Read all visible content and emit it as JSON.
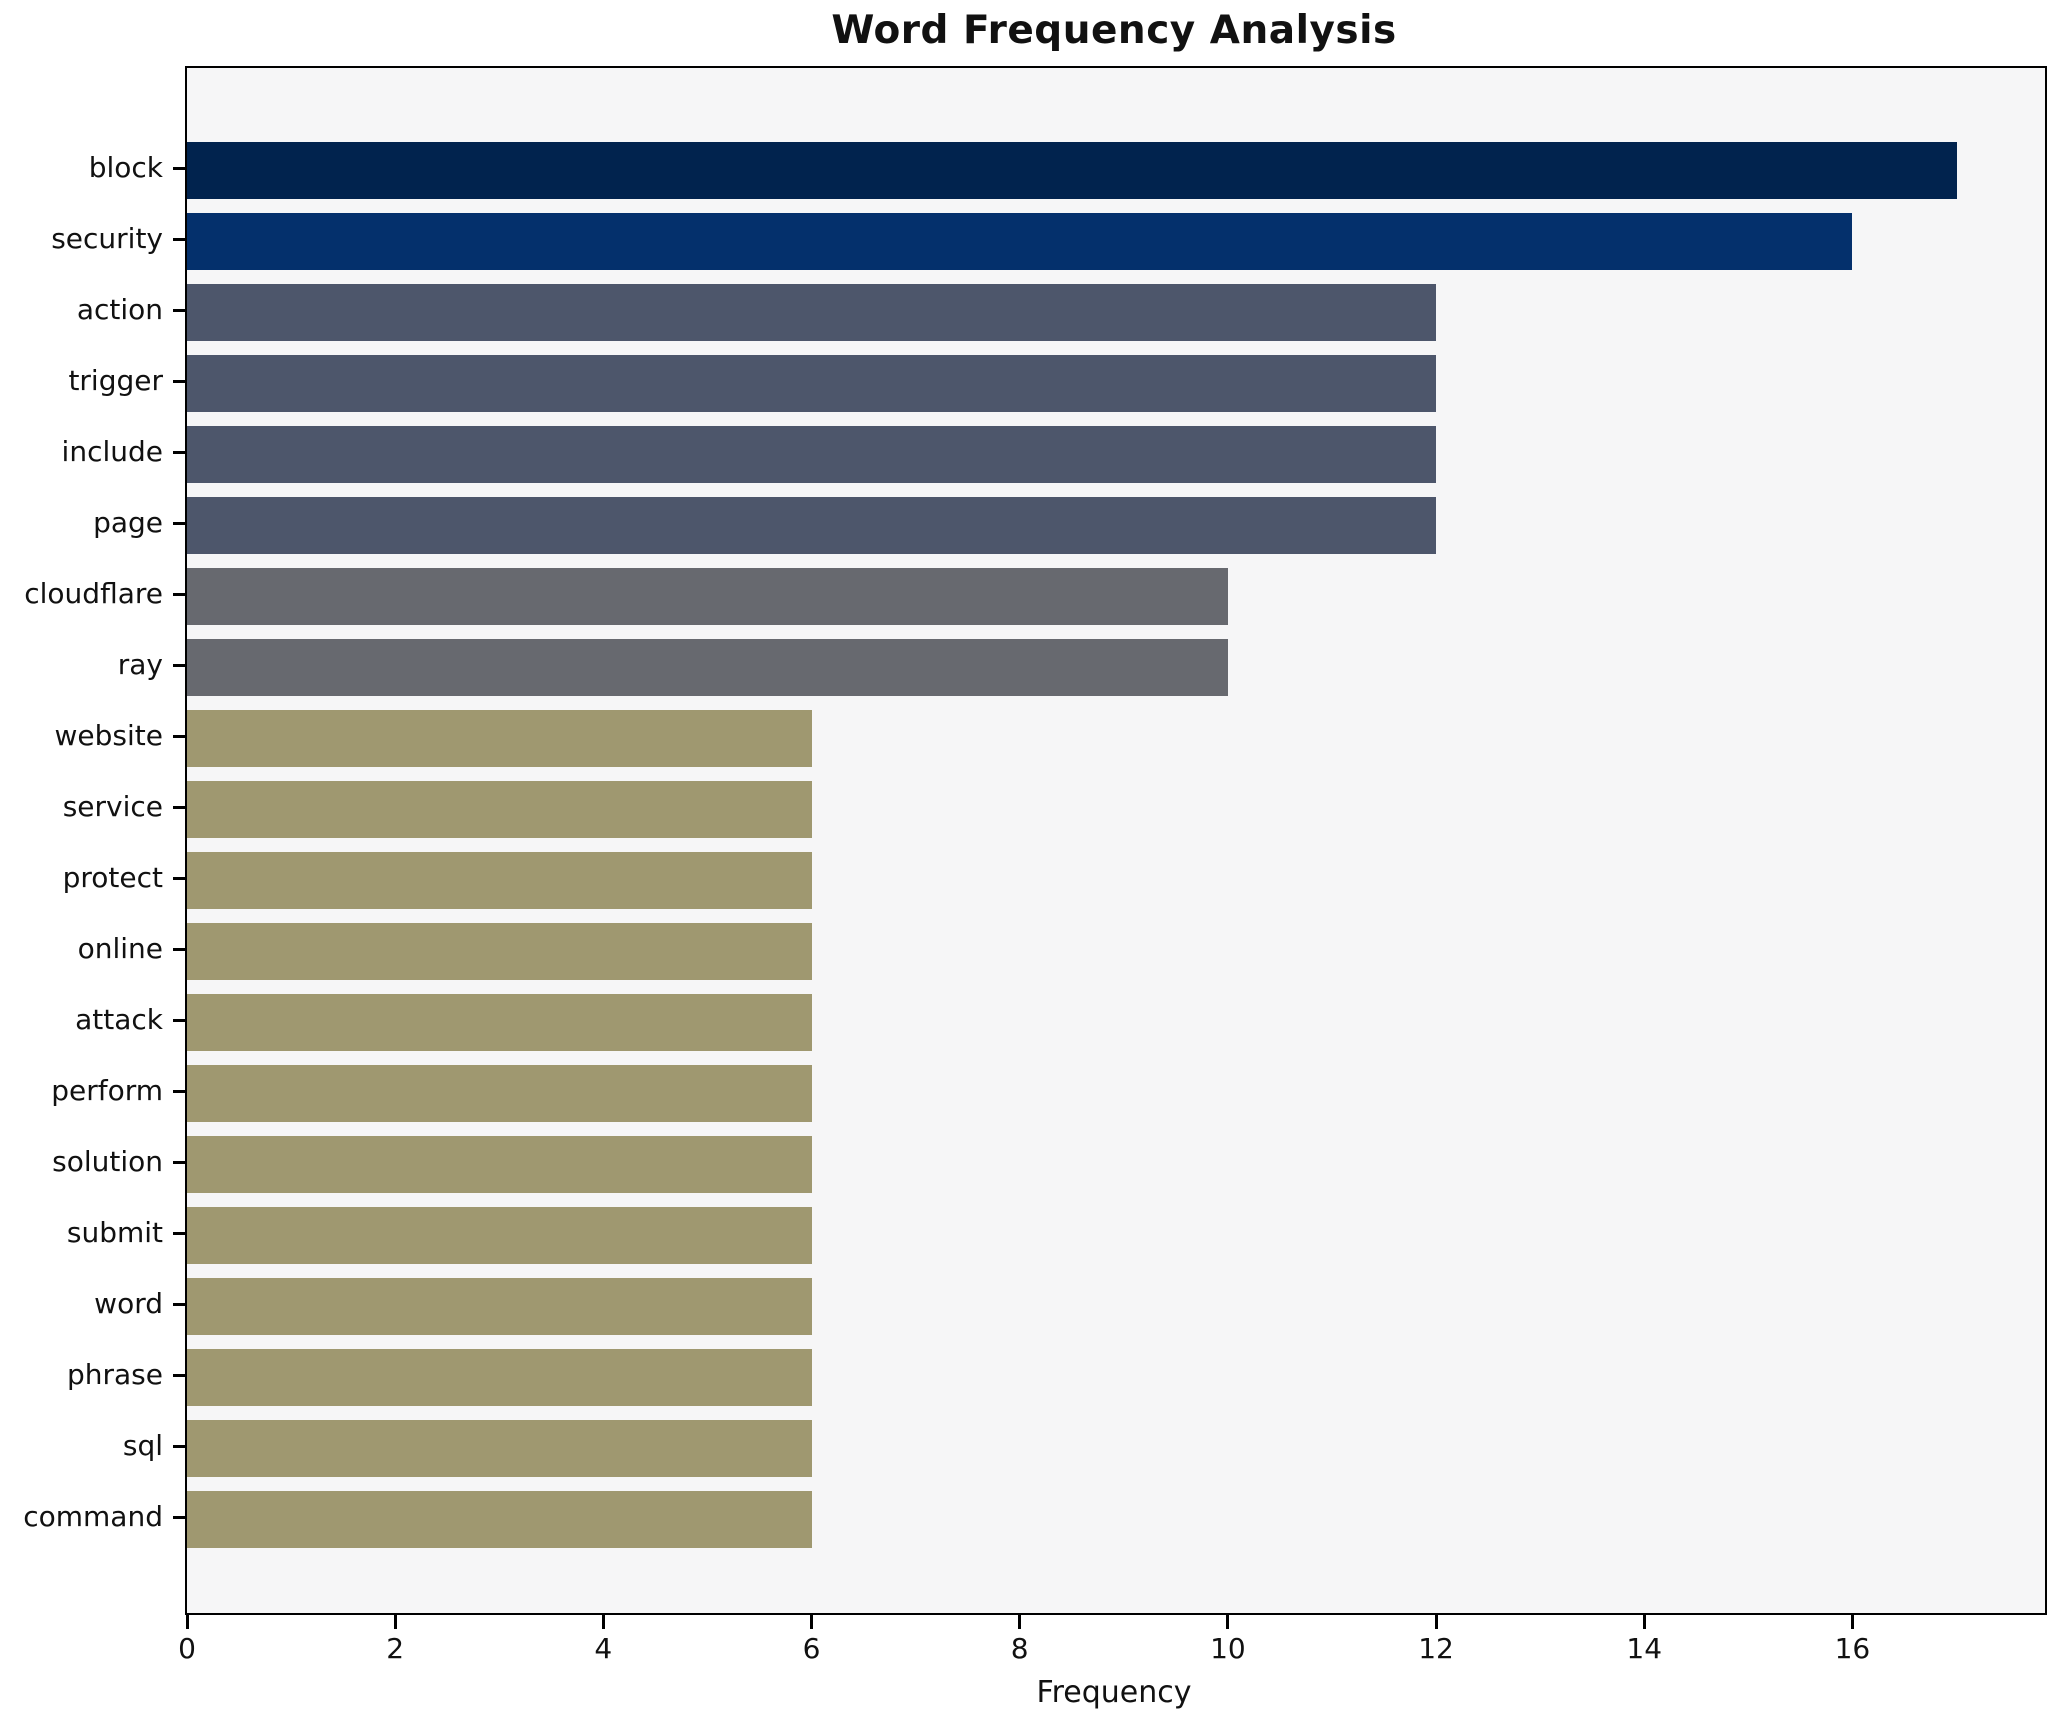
{
  "title": "Word Frequency Analysis",
  "chart_data": {
    "type": "bar",
    "orientation": "horizontal",
    "title": "Word Frequency Analysis",
    "xlabel": "Frequency",
    "ylabel": "",
    "categories": [
      "block",
      "security",
      "action",
      "trigger",
      "include",
      "page",
      "cloudflare",
      "ray",
      "website",
      "service",
      "protect",
      "online",
      "attack",
      "perform",
      "solution",
      "submit",
      "word",
      "phrase",
      "sql",
      "command"
    ],
    "values": [
      17,
      16,
      12,
      12,
      12,
      12,
      10,
      10,
      6,
      6,
      6,
      6,
      6,
      6,
      6,
      6,
      6,
      6,
      6,
      6
    ],
    "bar_colors": [
      "#01234e",
      "#04306c",
      "#4d566b",
      "#4d566b",
      "#4d566b",
      "#4d566b",
      "#67696f",
      "#67696f",
      "#9f9870",
      "#9f9870",
      "#9f9870",
      "#9f9870",
      "#9f9870",
      "#9f9870",
      "#9f9870",
      "#9f9870",
      "#9f9870",
      "#9f9870",
      "#9f9870",
      "#9f9870"
    ],
    "x_ticks": [
      0,
      2,
      4,
      6,
      8,
      10,
      12,
      14,
      16
    ],
    "xlim": [
      0,
      17.85
    ],
    "grid": false,
    "legend": "none",
    "plot_background": "#f6f6f7",
    "figure_background": "#ffffff",
    "spine_color": "#000000"
  }
}
